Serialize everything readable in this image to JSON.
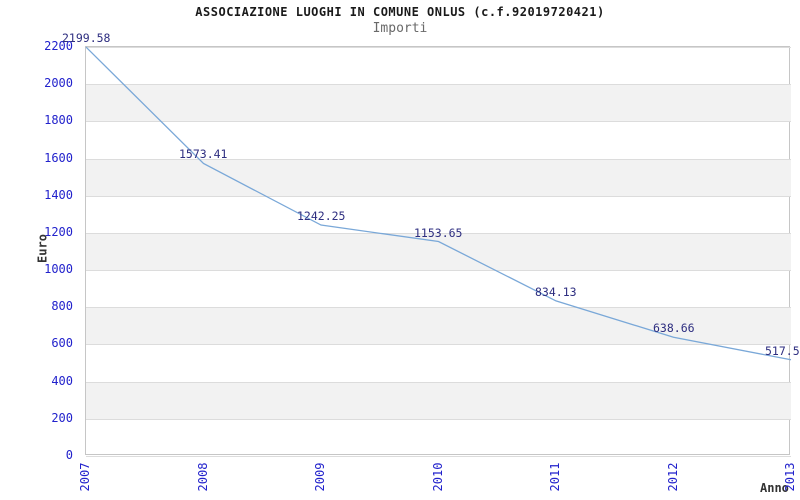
{
  "title": "ASSOCIAZIONE LUOGHI IN COMUNE ONLUS (c.f.92019720421)",
  "subtitle": "Importi",
  "chart_data": {
    "type": "line",
    "categories": [
      "2007",
      "2008",
      "2009",
      "2010",
      "2011",
      "2012",
      "2013"
    ],
    "series": [
      {
        "name": "Importi",
        "values": [
          2199.58,
          1573.41,
          1242.25,
          1153.65,
          834.13,
          638.66,
          517.5
        ]
      }
    ],
    "point_labels": [
      "2199.58",
      "1573.41",
      "1242.25",
      "1153.65",
      "834.13",
      "638.66",
      "517.5"
    ],
    "title": "ASSOCIAZIONE LUOGHI IN COMUNE ONLUS (c.f.92019720421)",
    "subtitle": "Importi",
    "xlabel": "Anno",
    "ylabel": "Euro",
    "ylim": [
      0,
      2200
    ],
    "ytick_step": 200,
    "grid": "horizontal-with-alternating-bands",
    "legend": "none",
    "colors": {
      "line": "#7aa8d8",
      "tick_label": "#2222cc",
      "point_label": "#2e2e80",
      "band": "#f2f2f2",
      "gridline": "#dcdcdc",
      "plot_border": "#c6c6c6",
      "title": "#1a1a1a",
      "subtitle": "#696969",
      "axis_title": "#333333",
      "background": "#ffffff"
    }
  }
}
